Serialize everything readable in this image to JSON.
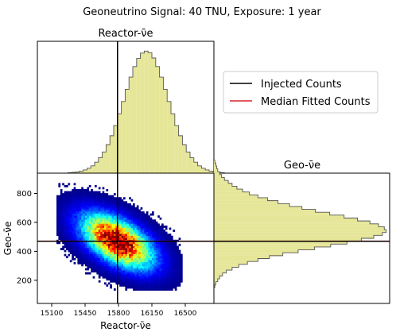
{
  "title": "Geoneutrino Signal: 40 TNU, Exposure: 1 year",
  "colors": {
    "hist_fill": "#e6e699",
    "hist_edge": "#555555",
    "injected": "#000000",
    "median": "#d62728"
  },
  "legend": {
    "placement": "upper-right",
    "entries": [
      {
        "label": "Injected Counts",
        "color": "#000000"
      },
      {
        "label": "Median Fitted Counts",
        "color": "#d62728"
      }
    ]
  },
  "chart_data": [
    {
      "type": "histogram",
      "title": "Reactor-ν̄e",
      "xlim": [
        14950,
        16800
      ],
      "injected": 15790,
      "median": 15790,
      "bins": {
        "start": 15270,
        "width": 40,
        "counts": [
          1,
          2,
          3,
          5,
          8,
          12,
          18,
          27,
          38,
          52,
          70,
          92,
          117,
          146,
          176,
          206,
          236,
          262,
          282,
          295,
          300,
          296,
          283,
          262,
          236,
          206,
          176,
          146,
          117,
          92,
          70,
          52,
          38,
          27,
          18,
          12,
          8,
          5,
          3,
          2,
          1
        ]
      }
    },
    {
      "type": "histogram",
      "orientation": "horizontal",
      "title": "Geo-ν̄e",
      "ylim": [
        40,
        940
      ],
      "injected": 470,
      "median": 470,
      "bins": {
        "start": 150,
        "width": 20,
        "counts": [
          1,
          2,
          4,
          6,
          9,
          13,
          19,
          26,
          35,
          46,
          58,
          72,
          88,
          105,
          122,
          139,
          154,
          167,
          176,
          180,
          178,
          172,
          163,
          150,
          136,
          121,
          106,
          92,
          79,
          67,
          56,
          46,
          37,
          30,
          24,
          19,
          15,
          11,
          8,
          6,
          4,
          3,
          2,
          1
        ]
      }
    },
    {
      "type": "heatmap",
      "xlabel": "Reactor-ν̄e",
      "ylabel": "Geo-ν̄e",
      "xlim": [
        14950,
        16800
      ],
      "ylim": [
        40,
        940
      ],
      "xticks": [
        15100,
        15450,
        15800,
        16150,
        16500
      ],
      "yticks": [
        200,
        400,
        600,
        800
      ],
      "colormap": "jet",
      "center": [
        15790,
        470
      ],
      "spread": [
        240,
        120
      ],
      "correlation": -0.55,
      "injected": [
        15790,
        470
      ],
      "median": [
        15790,
        470
      ]
    }
  ]
}
